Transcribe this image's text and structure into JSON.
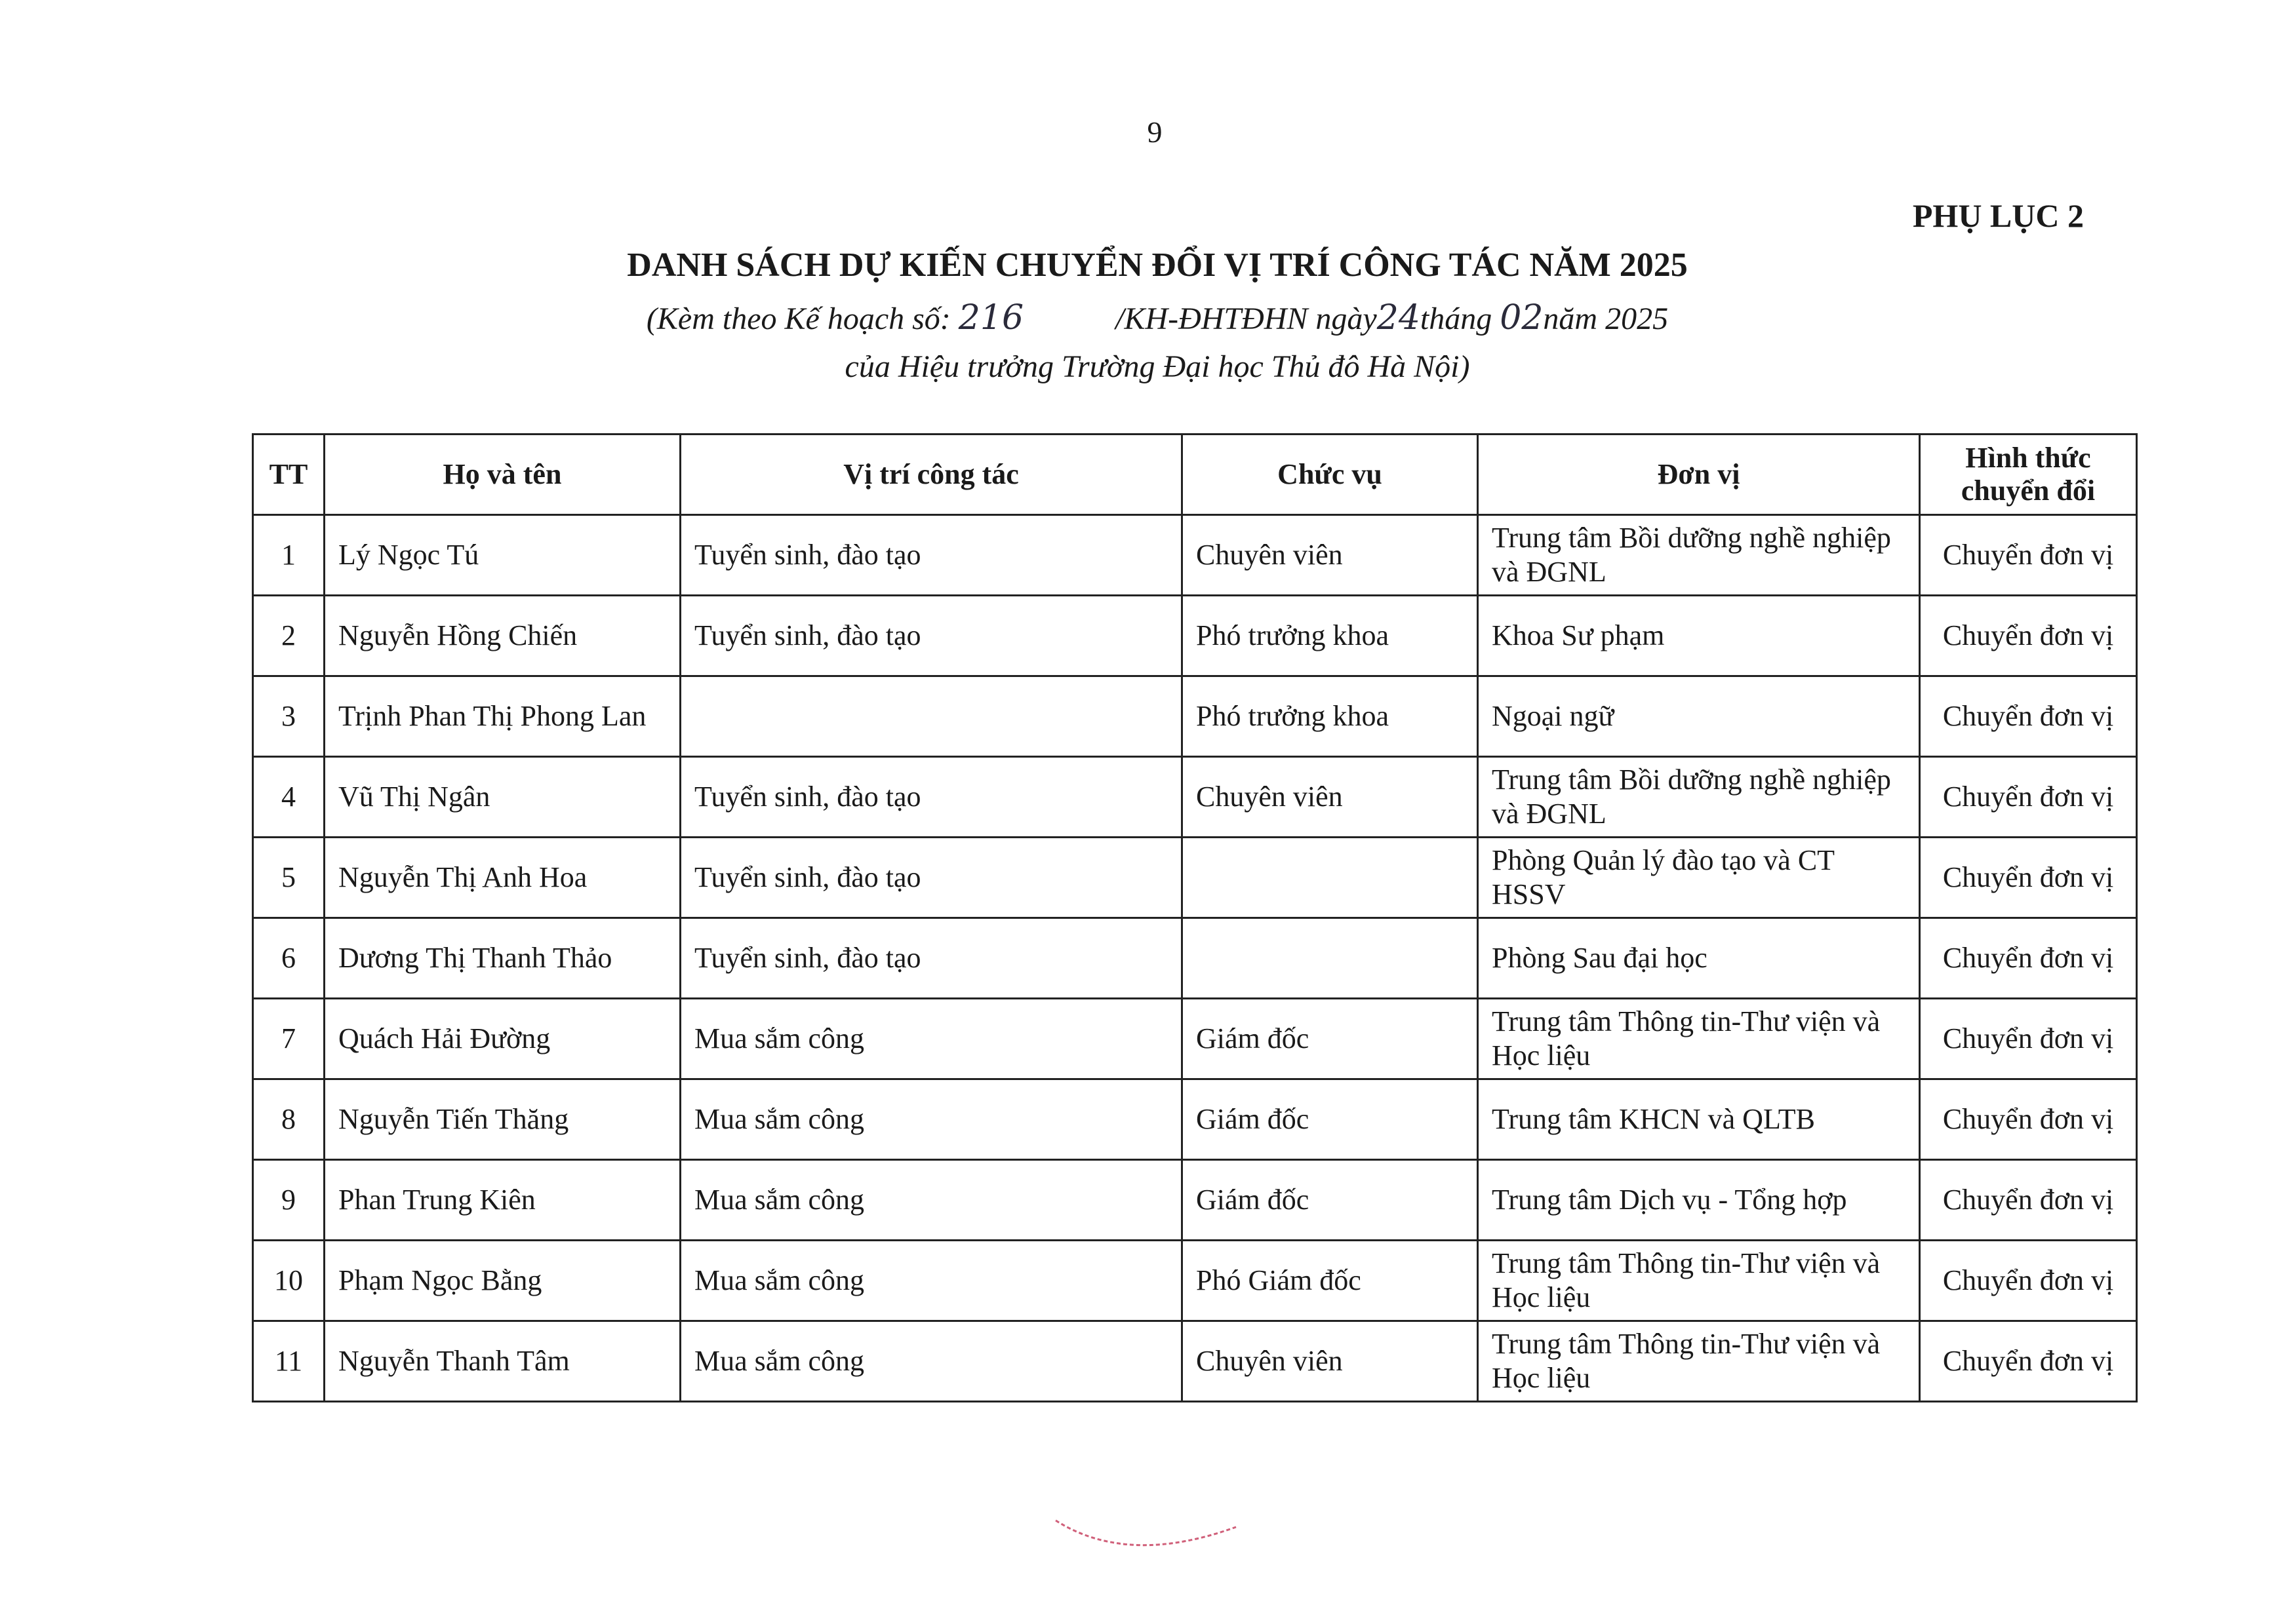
{
  "page_number": "9",
  "appendix": "PHỤ LỤC 2",
  "title": "DANH SÁCH DỰ KIẾN CHUYỂN ĐỔI VỊ TRÍ CÔNG TÁC NĂM 2025",
  "subtitle": {
    "prefix": "(Kèm theo Kế hoạch số:",
    "number_handwritten": "216",
    "mid": "/KH-ĐHTĐHN ngày",
    "day_handwritten": "24",
    "month_label": "tháng",
    "month_handwritten": "02",
    "year": "năm 2025",
    "line2": "của Hiệu trưởng Trường Đại học Thủ đô Hà Nội)"
  },
  "table": {
    "headers": [
      "TT",
      "Họ và tên",
      "Vị trí công tác",
      "Chức vụ",
      "Đơn vị",
      "Hình thức chuyển đổi"
    ],
    "rows": [
      [
        "1",
        "Lý Ngọc Tú",
        "Tuyển sinh, đào tạo",
        "Chuyên viên",
        "Trung tâm Bồi dưỡng nghề nghiệp và ĐGNL",
        "Chuyển đơn vị"
      ],
      [
        "2",
        "Nguyễn Hồng Chiến",
        "Tuyển sinh, đào tạo",
        "Phó trưởng khoa",
        "Khoa Sư phạm",
        "Chuyển đơn vị"
      ],
      [
        "3",
        "Trịnh Phan Thị Phong Lan",
        "",
        "Phó trưởng khoa",
        "Ngoại ngữ",
        "Chuyển đơn vị"
      ],
      [
        "4",
        "Vũ Thị Ngân",
        "Tuyển sinh, đào tạo",
        "Chuyên viên",
        "Trung tâm Bồi dưỡng nghề nghiệp và ĐGNL",
        "Chuyển đơn vị"
      ],
      [
        "5",
        "Nguyễn Thị Anh Hoa",
        "Tuyển sinh, đào tạo",
        "",
        "Phòng Quản lý đào tạo và CT HSSV",
        "Chuyển đơn vị"
      ],
      [
        "6",
        "Dương Thị Thanh Thảo",
        "Tuyển sinh, đào tạo",
        "",
        "Phòng Sau đại học",
        "Chuyển đơn vị"
      ],
      [
        "7",
        "Quách Hải Đường",
        "Mua sắm công",
        "Giám đốc",
        "Trung tâm Thông tin-Thư viện và Học liệu",
        "Chuyển đơn vị"
      ],
      [
        "8",
        "Nguyễn Tiến Thăng",
        "Mua sắm công",
        "Giám đốc",
        "Trung tâm KHCN và QLTB",
        "Chuyển đơn vị"
      ],
      [
        "9",
        "Phan Trung Kiên",
        "Mua sắm công",
        "Giám đốc",
        "Trung tâm Dịch vụ - Tổng hợp",
        "Chuyển đơn vị"
      ],
      [
        "10",
        "Phạm Ngọc Bằng",
        "Mua sắm công",
        "Phó Giám đốc",
        "Trung tâm Thông tin-Thư viện và Học liệu",
        "Chuyển đơn vị"
      ],
      [
        "11",
        "Nguyễn Thanh Tâm",
        "Mua sắm công",
        "Chuyên viên",
        "Trung tâm Thông tin-Thư viện và Học liệu",
        "Chuyển đơn vị"
      ]
    ]
  },
  "colors": {
    "text": "#1a1a1a",
    "stamp": "#d0607a"
  }
}
